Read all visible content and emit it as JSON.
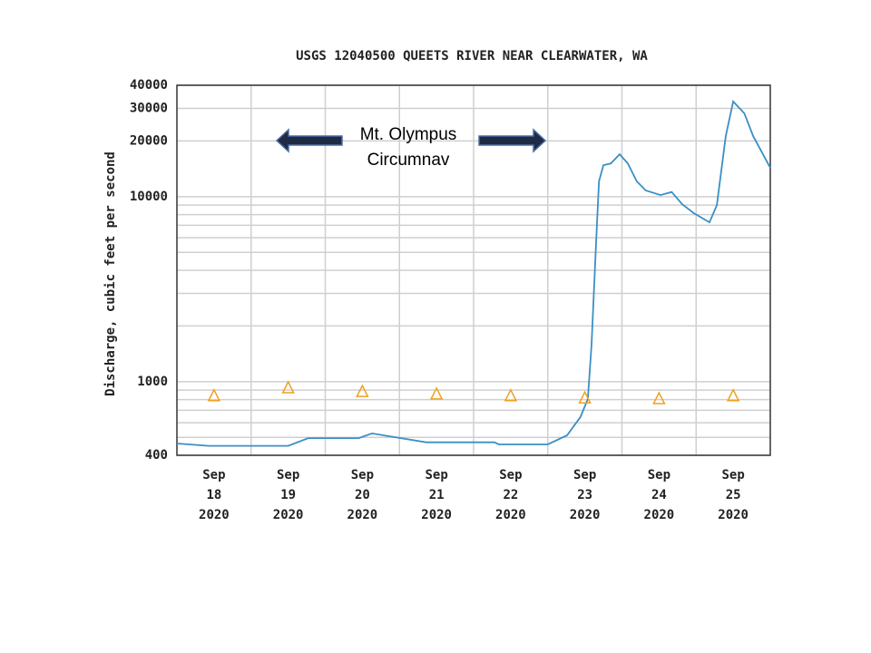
{
  "chart_data": {
    "type": "line",
    "title": "USGS 12040500 QUEETS RIVER NEAR CLEARWATER, WA",
    "y_label": "Discharge, cubic feet per second",
    "annotation": [
      "Mt. Olympus",
      "Circumnav"
    ],
    "log_y": true,
    "grid": true,
    "xlim": [
      18,
      26
    ],
    "ylim": [
      400,
      40000
    ],
    "yticks": [
      400,
      1000,
      10000,
      20000,
      30000,
      40000
    ],
    "yminor": [
      500,
      600,
      700,
      800,
      900,
      2000,
      3000,
      4000,
      5000,
      6000,
      7000,
      8000,
      9000
    ],
    "xgrid": [
      19,
      20,
      21,
      22,
      23,
      24,
      25
    ],
    "xticks": [
      {
        "value": 18.5,
        "label": "Sep\n18\n2020"
      },
      {
        "value": 19.5,
        "label": "Sep\n19\n2020"
      },
      {
        "value": 20.5,
        "label": "Sep\n20\n2020"
      },
      {
        "value": 21.5,
        "label": "Sep\n21\n2020"
      },
      {
        "value": 22.5,
        "label": "Sep\n22\n2020"
      },
      {
        "value": 23.5,
        "label": "Sep\n23\n2020"
      },
      {
        "value": 24.5,
        "label": "Sep\n24\n2020"
      },
      {
        "value": 25.5,
        "label": "Sep\n25\n2020"
      }
    ],
    "series": [
      {
        "type": "line",
        "color": "#3b8fc4",
        "x": [
          18,
          18.43,
          19.5,
          19.77,
          20.45,
          20.63,
          21.36,
          22.28,
          22.34,
          23.0,
          23.26,
          23.44,
          23.54,
          23.59,
          23.65,
          23.69,
          23.75,
          23.85,
          23.97,
          24.08,
          24.2,
          24.32,
          24.52,
          24.67,
          24.81,
          24.97,
          25.18,
          25.28,
          25.4,
          25.5,
          25.65,
          25.77,
          26.0
        ],
        "values": [
          463,
          450,
          450,
          495,
          495,
          525,
          470,
          470,
          458,
          458,
          513,
          643,
          805,
          1585,
          5490,
          12100,
          14800,
          15100,
          16950,
          15100,
          12100,
          10800,
          10200,
          10600,
          9120,
          8140,
          7270,
          9000,
          21200,
          32700,
          28200,
          21200,
          14300
        ]
      },
      {
        "type": "scatter",
        "marker": "triangle",
        "color": "#f0a020",
        "x": [
          18.5,
          19.5,
          20.5,
          21.5,
          22.5,
          23.5,
          24.5,
          25.5
        ],
        "values": [
          835,
          922,
          880,
          853,
          835,
          812,
          805,
          835
        ]
      }
    ]
  }
}
